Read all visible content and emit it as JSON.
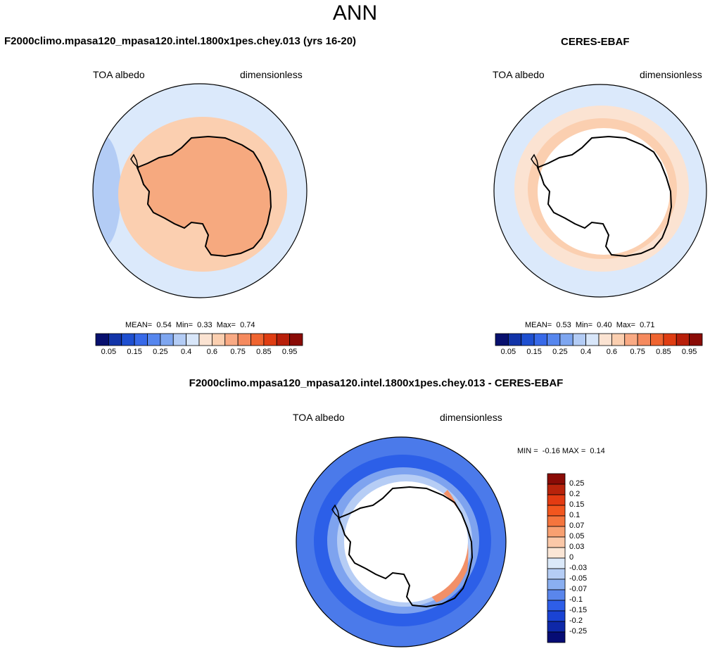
{
  "figure_title": "ANN",
  "panels": [
    {
      "title": "F2000climo.mpasa120_mpasa120.intel.1800x1pes.chey.013 (yrs 16-20)",
      "variable": "TOA albedo",
      "units": "dimensionless",
      "stats": {
        "mean_label": "MEAN=",
        "mean": "0.54",
        "min_label": "Min=",
        "min": "0.33",
        "max_label": "Max=",
        "max": "0.74"
      }
    },
    {
      "title": "CERES-EBAF",
      "variable": "TOA albedo",
      "units": "dimensionless",
      "stats": {
        "mean_label": "MEAN=",
        "mean": "0.53",
        "min_label": "Min=",
        "min": "0.40",
        "max_label": "Max=",
        "max": "0.71"
      }
    },
    {
      "title": "F2000climo.mpasa120_mpasa120.intel.1800x1pes.chey.013 - CERES-EBAF",
      "variable": "TOA albedo",
      "units": "dimensionless",
      "stats": {
        "min_label": "MIN =",
        "min": "-0.16",
        "max_label": "MAX =",
        "max": "0.14"
      }
    }
  ],
  "horizontal_colorbar": {
    "colors": [
      "#08106e",
      "#1234a8",
      "#1e4fd0",
      "#3769e8",
      "#5686ee",
      "#7ea6f0",
      "#b3ccf5",
      "#d8e6f9",
      "#fbe3d2",
      "#fbcfb0",
      "#f9aa84",
      "#f58a5e",
      "#ef6430",
      "#df3d12",
      "#b81f0a",
      "#8a0b06"
    ],
    "ticks": [
      "0.05",
      "0.15",
      "0.25",
      "0.4",
      "0.6",
      "0.75",
      "0.85",
      "0.95"
    ]
  },
  "vertical_colorbar": {
    "colors": [
      "#8a0b06",
      "#b8230b",
      "#e33b12",
      "#f2561e",
      "#f5753d",
      "#f8a071",
      "#fbc8a8",
      "#fbe6d6",
      "#dbe9f9",
      "#b5cdf5",
      "#8aaff1",
      "#5a86ec",
      "#2e5ee8",
      "#1a43d4",
      "#0e28a8",
      "#060c74"
    ],
    "ticks": [
      "0.25",
      "0.2",
      "0.15",
      "0.1",
      "0.07",
      "0.05",
      "0.03",
      "0",
      "-0.03",
      "-0.05",
      "-0.07",
      "-0.1",
      "-0.15",
      "-0.2",
      "-0.25"
    ]
  },
  "map_colors": {
    "ocean_light": "#dbe9fb",
    "ocean_mid": "#b3ccf5",
    "land_high": "#f6a97f",
    "land_low": "#fbcfb0",
    "ring_light": "#fbe3d2",
    "diff_dark": "#2c5fe8",
    "diff_mid": "#4b7aea",
    "diff_light": "#7ea3ef",
    "diff_pale": "#b6cdf5",
    "diff_warm": "#f29068"
  }
}
